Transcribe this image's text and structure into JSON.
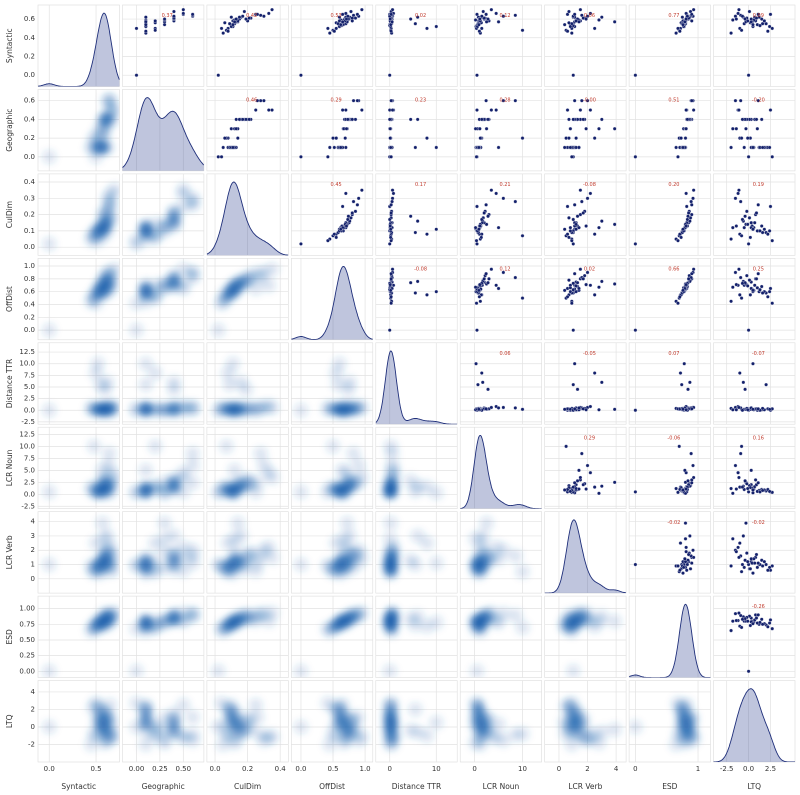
{
  "chart_data": {
    "type": "pairplot",
    "variables": [
      {
        "name": "Syntactic",
        "lim": [
          -0.12,
          0.75
        ],
        "xticks": [
          {
            "value": 0,
            "label": "0.0"
          },
          0.5
        ],
        "yticks": [
          {
            "value": 0,
            "label": "0.0"
          },
          0.2,
          0.4,
          0.6
        ],
        "values": [
          0.0,
          0.55,
          0.6,
          0.62,
          0.5,
          0.58,
          0.65,
          0.45,
          0.52,
          0.57,
          0.6,
          0.63,
          0.68,
          0.55,
          0.48,
          0.59,
          0.61,
          0.54,
          0.66,
          0.57,
          0.5,
          0.62,
          0.58,
          0.64,
          0.56,
          0.53,
          0.6,
          0.47,
          0.59,
          0.62,
          0.7,
          0.55,
          0.58,
          0.61,
          0.52,
          0.63,
          0.57,
          0.6,
          0.65,
          0.54
        ]
      },
      {
        "name": "Geographic",
        "lim": [
          -0.15,
          0.72
        ],
        "xticks": [
          {
            "value": 0,
            "label": "0.00"
          },
          0.25,
          {
            "value": 0.5,
            "label": "0.50"
          }
        ],
        "yticks": [
          {
            "value": 0,
            "label": "0.0"
          },
          0.2,
          0.4,
          0.6
        ],
        "values": [
          0.0,
          0.1,
          0.4,
          0.1,
          0.2,
          0.4,
          0.5,
          0.1,
          0.1,
          0.3,
          0.4,
          0.6,
          0.4,
          0.1,
          0.2,
          0.1,
          0.4,
          0.3,
          0.5,
          0.1,
          0.0,
          0.4,
          0.1,
          0.6,
          0.2,
          0.1,
          0.4,
          0.1,
          0.3,
          0.4,
          0.5,
          0.1,
          0.2,
          0.4,
          0.1,
          0.4,
          0.1,
          0.3,
          0.6,
          0.1
        ]
      },
      {
        "name": "CulDim",
        "lim": [
          -0.05,
          0.45
        ],
        "xticks": [
          {
            "value": 0,
            "label": "0.0"
          },
          0.2,
          0.4
        ],
        "yticks": [
          {
            "value": 0,
            "label": "0.0"
          },
          0.1,
          0.2,
          0.3,
          0.4
        ],
        "values": [
          0.02,
          0.12,
          0.15,
          0.1,
          0.08,
          0.2,
          0.25,
          0.05,
          0.11,
          0.14,
          0.13,
          0.3,
          0.18,
          0.09,
          0.07,
          0.12,
          0.22,
          0.1,
          0.33,
          0.13,
          0.04,
          0.16,
          0.11,
          0.28,
          0.06,
          0.1,
          0.19,
          0.08,
          0.12,
          0.15,
          0.35,
          0.09,
          0.14,
          0.21,
          0.1,
          0.17,
          0.12,
          0.13,
          0.26,
          0.11
        ]
      },
      {
        "name": "OffDist",
        "lim": [
          -0.15,
          1.12
        ],
        "xticks": [
          {
            "value": 0,
            "label": "0.0"
          },
          0.5,
          {
            "value": 1,
            "label": "1.0"
          }
        ],
        "yticks": [
          {
            "value": 0,
            "label": "0.0"
          },
          0.2,
          0.4,
          0.6,
          0.8,
          {
            "value": 1,
            "label": "1.0"
          }
        ],
        "values": [
          0.0,
          0.7,
          0.75,
          0.6,
          0.55,
          0.8,
          0.65,
          0.45,
          0.6,
          0.72,
          0.68,
          0.9,
          0.78,
          0.58,
          0.5,
          0.62,
          0.85,
          0.66,
          0.7,
          0.64,
          0.42,
          0.76,
          0.6,
          0.82,
          0.55,
          0.63,
          0.74,
          0.52,
          0.67,
          0.7,
          0.95,
          0.58,
          0.69,
          0.8,
          0.6,
          0.73,
          0.65,
          0.71,
          0.88,
          0.62
        ]
      },
      {
        "name": "Distance TTR",
        "lim": [
          -3,
          14.5
        ],
        "xticks": [
          0,
          10
        ],
        "yticks": [
          -2.5,
          {
            "value": 0,
            "label": "0.0"
          },
          2.5,
          {
            "value": 5,
            "label": "5.0"
          },
          7.5,
          {
            "value": 10,
            "label": "10.0"
          },
          12.5
        ],
        "values": [
          0.0,
          0.2,
          0.5,
          0.1,
          8.0,
          0.3,
          0.0,
          0.4,
          10.0,
          0.2,
          0.1,
          0.6,
          0.3,
          5.5,
          0.2,
          0.1,
          0.4,
          0.0,
          0.8,
          0.2,
          0.3,
          6.0,
          0.1,
          0.5,
          0.2,
          0.0,
          4.5,
          0.3,
          0.1,
          0.2,
          0.6,
          0.4,
          0.1,
          0.3,
          0.2,
          0.0,
          0.5,
          0.1,
          0.3,
          0.2
        ]
      },
      {
        "name": "LCR Noun",
        "lim": [
          -3,
          14
        ],
        "xticks": [
          0,
          10
        ],
        "yticks": [
          -2.5,
          {
            "value": 0,
            "label": "0.0"
          },
          2.5,
          {
            "value": 5,
            "label": "5.0"
          },
          7.5,
          {
            "value": 10,
            "label": "10.0"
          },
          12.5
        ],
        "values": [
          0.5,
          1.0,
          2.0,
          0.8,
          1.5,
          3.0,
          0.5,
          1.2,
          0.3,
          2.5,
          1.0,
          6.0,
          1.8,
          0.7,
          10.0,
          1.1,
          2.2,
          0.6,
          4.5,
          1.3,
          0.4,
          1.7,
          0.9,
          8.5,
          1.4,
          0.5,
          2.8,
          1.0,
          0.2,
          1.6,
          3.5,
          0.8,
          1.2,
          2.0,
          0.6,
          1.5,
          5.0,
          1.1,
          2.4,
          0.9
        ]
      },
      {
        "name": "LCR Verb",
        "lim": [
          -1,
          4.7
        ],
        "xticks": [
          0,
          2,
          4
        ],
        "yticks": [
          0,
          1,
          2,
          3,
          4
        ],
        "values": [
          1.0,
          0.8,
          1.2,
          1.0,
          2.5,
          1.5,
          0.6,
          0.9,
          1.1,
          3.9,
          1.3,
          2.0,
          0.7,
          1.0,
          0.5,
          1.4,
          1.8,
          0.8,
          2.2,
          1.1,
          0.9,
          3.0,
          1.2,
          1.6,
          0.7,
          1.0,
          1.3,
          0.6,
          2.8,
          1.1,
          1.5,
          0.9,
          1.2,
          1.7,
          0.8,
          1.0,
          1.4,
          1.9,
          1.1,
          0.4
        ]
      },
      {
        "name": "ESD",
        "lim": [
          -0.1,
          1.2
        ],
        "xticks": [
          0,
          1
        ],
        "yticks": [
          {
            "value": 0,
            "label": "0.00"
          },
          0.25,
          {
            "value": 0.5,
            "label": "0.50"
          },
          0.75,
          {
            "value": 1,
            "label": "1.00"
          }
        ],
        "values": [
          0.0,
          0.8,
          0.85,
          0.75,
          0.72,
          0.9,
          0.82,
          0.65,
          0.78,
          0.8,
          0.83,
          0.92,
          0.88,
          0.74,
          0.7,
          0.79,
          0.86,
          0.77,
          0.81,
          0.8,
          0.68,
          0.87,
          0.76,
          0.89,
          0.73,
          0.78,
          0.84,
          0.71,
          0.8,
          0.82,
          0.93,
          0.75,
          0.8,
          0.85,
          0.77,
          0.83,
          0.79,
          0.81,
          0.9,
          0.76
        ]
      },
      {
        "name": "LTQ",
        "lim": [
          -4,
          5.3
        ],
        "xticks": [
          -2.5,
          {
            "value": 0,
            "label": "0.0"
          },
          2.5
        ],
        "yticks": [
          -2,
          0,
          2,
          4
        ],
        "values": [
          0.0,
          -0.5,
          0.3,
          1.2,
          -1.0,
          0.8,
          2.5,
          -2.0,
          0.5,
          -0.3,
          1.5,
          -1.5,
          0.1,
          2.0,
          -0.8,
          0.6,
          -0.2,
          1.0,
          -1.2,
          0.4,
          2.7,
          -0.6,
          1.8,
          -0.9,
          0.2,
          1.3,
          -0.4,
          2.2,
          -1.8,
          0.7,
          -1.1,
          1.6,
          -0.1,
          0.9,
          2.4,
          -0.7,
          0.3,
          -1.4,
          1.1,
          0.5
        ]
      }
    ],
    "correlations": [
      [
        {
          "value": 0.37,
          "label": "0.37"
        },
        {
          "value": 0.42,
          "label": "0.42"
        },
        {
          "value": 0.53,
          "label": "0.53"
        },
        {
          "value": 0.02,
          "label": "0.02"
        },
        {
          "value": 0.12,
          "label": "0.12"
        },
        {
          "value": 0.06,
          "label": "0.06"
        },
        {
          "value": 0.77,
          "label": "0.77"
        },
        {
          "value": 0.09,
          "label": "0.09"
        }
      ],
      [
        {
          "value": 0.46,
          "label": "0.46"
        },
        {
          "value": 0.29,
          "label": "0.29"
        },
        {
          "value": 0.23,
          "label": "0.23"
        },
        {
          "value": 0.28,
          "label": "0.28"
        },
        {
          "value": -0.0,
          "label": "-0.00"
        },
        {
          "value": 0.51,
          "label": "0.51"
        },
        {
          "value": -0.2,
          "label": "-0.20"
        }
      ],
      [
        {
          "value": 0.45,
          "label": "0.45"
        },
        {
          "value": 0.17,
          "label": "0.17"
        },
        {
          "value": 0.21,
          "label": "0.21"
        },
        {
          "value": -0.08,
          "label": "-0.08"
        },
        {
          "value": 0.2,
          "label": "0.20"
        },
        {
          "value": 0.19,
          "label": "0.19"
        }
      ],
      [
        {
          "value": -0.08,
          "label": "-0.08"
        },
        {
          "value": 0.12,
          "label": "0.12"
        },
        {
          "value": 0.02,
          "label": "0.02"
        },
        {
          "value": 0.66,
          "label": "0.66"
        },
        {
          "value": 0.25,
          "label": "0.25"
        }
      ],
      [
        {
          "value": 0.06,
          "label": "0.06"
        },
        {
          "value": -0.05,
          "label": "-0.05"
        },
        {
          "value": 0.07,
          "label": "0.07"
        },
        {
          "value": -0.07,
          "label": "-0.07"
        }
      ],
      [
        {
          "value": 0.29,
          "label": "0.29"
        },
        {
          "value": -0.06,
          "label": "-0.06"
        },
        {
          "value": 0.16,
          "label": "0.16"
        }
      ],
      [
        {
          "value": -0.02,
          "label": "-0.02"
        },
        {
          "value": -0.02,
          "label": "-0.02"
        }
      ],
      [
        {
          "value": -0.26,
          "label": "-0.26"
        }
      ]
    ]
  }
}
